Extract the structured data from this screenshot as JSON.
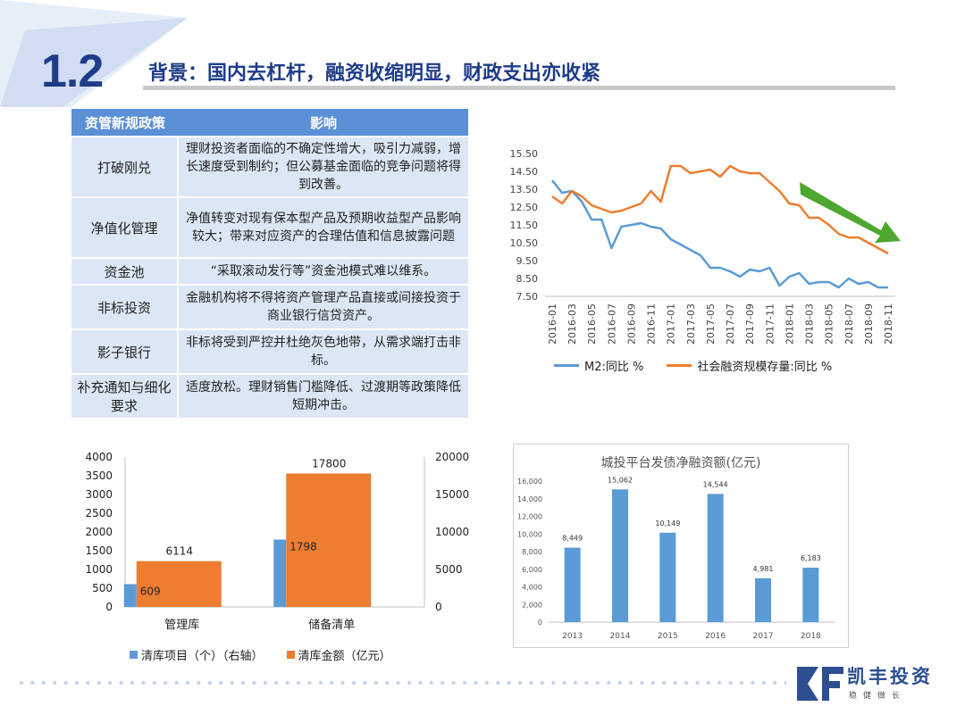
{
  "header": {
    "section_number": "1.2",
    "title": "背景：国内去杠杆，融资收缩明显，财政支出亦收紧"
  },
  "policy_table": {
    "headers": [
      "资管新规政策",
      "影响"
    ],
    "rows": [
      {
        "policy": "打破刚兑",
        "impact": "理财投资者面临的不确定性增大，吸引力减弱，增长速度受到制约；但公募基金面临的竞争问题将得到改善。"
      },
      {
        "policy": "净值化管理",
        "impact": "净值转变对现有保本型产品及预期收益型产品影响较大；带来对应资产的合理估值和信息披露问题"
      },
      {
        "policy": "资金池",
        "impact": "“采取滚动发行等”资金池模式难以维系。"
      },
      {
        "policy": "非标投资",
        "impact": "金融机构将不得将资产管理产品直接或间接投资于商业银行信贷资产。"
      },
      {
        "policy": "影子银行",
        "impact": "非标将受到严控并杜绝灰色地带，从需求端打击非标。"
      },
      {
        "policy": "补充通知与细化要求",
        "impact": "适度放松。理财销售门槛降低、过渡期等政策降低短期冲击。"
      }
    ]
  },
  "chart_data": [
    {
      "type": "line",
      "title": "",
      "ylim": [
        7.5,
        15.5
      ],
      "y_ticks": [
        "15.50",
        "14.50",
        "13.50",
        "12.50",
        "11.50",
        "10.50",
        "9.50",
        "8.50",
        "7.50"
      ],
      "x_tick_labels": [
        "2016-01",
        "2016-03",
        "2016-05",
        "2016-07",
        "2016-09",
        "2016-11",
        "2017-01",
        "2017-03",
        "2017-05",
        "2017-07",
        "2017-09",
        "2017-11",
        "2018-01",
        "2018-03",
        "2018-05",
        "2018-07",
        "2018-09",
        "2018-11"
      ],
      "series": [
        {
          "name": "M2:同比 %",
          "color": "#5b9bd5",
          "values": [
            14.0,
            13.3,
            13.4,
            12.8,
            11.8,
            11.8,
            10.2,
            11.4,
            11.5,
            11.6,
            11.4,
            11.3,
            10.7,
            10.4,
            10.1,
            9.8,
            9.1,
            9.1,
            8.9,
            8.6,
            9.0,
            8.9,
            9.1,
            8.1,
            8.6,
            8.8,
            8.2,
            8.3,
            8.3,
            8.0,
            8.5,
            8.2,
            8.3,
            8.0,
            8.0
          ]
        },
        {
          "name": "社会融资规模存量:同比 %",
          "color": "#ed7d31",
          "values": [
            13.1,
            12.7,
            13.4,
            13.1,
            12.6,
            12.4,
            12.2,
            12.3,
            12.5,
            12.7,
            13.4,
            12.8,
            14.8,
            14.8,
            14.4,
            14.5,
            14.6,
            14.2,
            14.8,
            14.5,
            14.4,
            14.4,
            13.9,
            13.4,
            12.7,
            12.6,
            11.9,
            11.9,
            11.5,
            11.0,
            10.8,
            10.8,
            10.5,
            10.2,
            9.9
          ]
        }
      ]
    },
    {
      "type": "bar",
      "categories": [
        "管理库",
        "储备清单"
      ],
      "series": [
        {
          "name": "清库项目（个）（右轴）",
          "color": "#5b9bd5",
          "axis": "left",
          "values": [
            609,
            1798
          ]
        },
        {
          "name": "清库金额（亿元）",
          "color": "#ed7d31",
          "axis": "right",
          "values": [
            6114,
            17800
          ]
        }
      ],
      "left_axis": {
        "ylim": [
          0,
          4000
        ],
        "ticks": [
          "4000",
          "3500",
          "3000",
          "2500",
          "2000",
          "1500",
          "1000",
          "500",
          "0"
        ]
      },
      "right_axis": {
        "ylim": [
          0,
          20000
        ],
        "ticks": [
          "20000",
          "15000",
          "10000",
          "5000",
          "0"
        ]
      },
      "value_labels": {
        "orange": [
          "6114",
          "17800"
        ],
        "blue": [
          "609",
          "1798"
        ]
      }
    },
    {
      "type": "bar",
      "title": "城投平台发债净融资额(亿元)",
      "categories": [
        "2013",
        "2014",
        "2015",
        "2016",
        "2017",
        "2018"
      ],
      "values": [
        8449,
        15062,
        10149,
        14544,
        4981,
        6183
      ],
      "value_labels": [
        "8,449",
        "15,062",
        "10,149",
        "14,544",
        "4,981",
        "6,183"
      ],
      "ylim": [
        0,
        16000
      ],
      "y_ticks": [
        "16,000",
        "14,000",
        "12,000",
        "10,000",
        "8,000",
        "6,000",
        "4,000",
        "2,000",
        "0"
      ],
      "color": "#5b9bd5"
    }
  ],
  "legends": {
    "line_chart": [
      "M2:同比 %",
      "社会融资规模存量:同比 %"
    ],
    "combo_chart": [
      "清库项目（个）（右轴）",
      "清库金额（亿元）"
    ]
  },
  "colors": {
    "brand": "#1f3c88",
    "accent_blue": "#5b9bd5",
    "accent_orange": "#ed7d31",
    "trend_arrow": "#4ea72e"
  },
  "logo": {
    "name": "凯丰投资",
    "tagline": "稳健做长"
  }
}
